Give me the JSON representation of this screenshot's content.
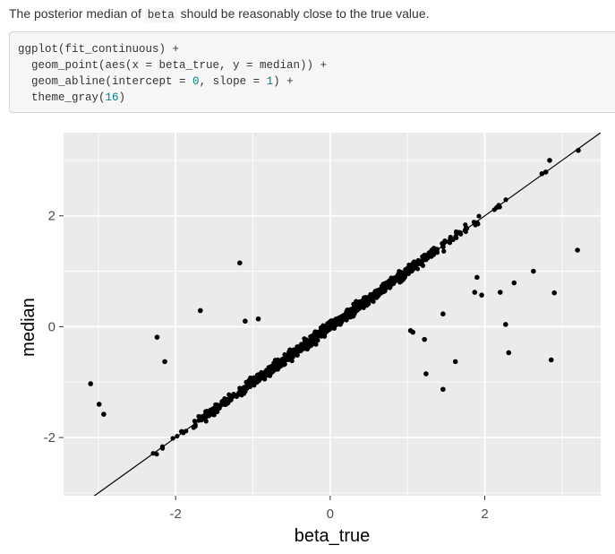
{
  "intro": {
    "before": "The posterior median of ",
    "code": "beta",
    "after": " should be reasonably close to the true value."
  },
  "code_lines": [
    {
      "parts": [
        {
          "t": "ggplot(fit_continuous) +"
        }
      ]
    },
    {
      "parts": [
        {
          "t": "  geom_point(aes(x = beta_true, y = median)) +"
        }
      ]
    },
    {
      "parts": [
        {
          "t": "  geom_abline(intercept = "
        },
        {
          "t": "0",
          "num": true
        },
        {
          "t": ", slope = "
        },
        {
          "t": "1",
          "num": true
        },
        {
          "t": ") +"
        }
      ]
    },
    {
      "parts": [
        {
          "t": "  theme_gray("
        },
        {
          "t": "16",
          "num": true
        },
        {
          "t": ")"
        }
      ]
    }
  ],
  "chart_data": {
    "type": "scatter",
    "xlabel": "beta_true",
    "ylabel": "median",
    "xlim": [
      -3.45,
      3.5
    ],
    "ylim": [
      -3.05,
      3.5
    ],
    "xticks": [
      -2,
      0,
      2
    ],
    "yticks": [
      -2,
      0,
      2
    ],
    "xtick_labels": [
      "-2",
      "0",
      "2"
    ],
    "ytick_labels": [
      "-2",
      "0",
      "2"
    ],
    "grid": true,
    "panel_color": "#ebebeb",
    "grid_color": "#ffffff",
    "point_color": "#000000",
    "line_color": "#000000",
    "abline": {
      "intercept": 0,
      "slope": 1
    },
    "outliers": [
      [
        -3.1,
        -1.03
      ],
      [
        -2.99,
        -1.4
      ],
      [
        -2.93,
        -1.58
      ],
      [
        -2.24,
        -0.19
      ],
      [
        -2.14,
        -0.63
      ],
      [
        -1.68,
        0.29
      ],
      [
        -1.17,
        1.15
      ],
      [
        -1.1,
        0.1
      ],
      [
        -0.93,
        0.14
      ],
      [
        1.04,
        -0.07
      ],
      [
        1.07,
        -0.1
      ],
      [
        1.22,
        -0.23
      ],
      [
        1.24,
        -0.85
      ],
      [
        1.46,
        -1.13
      ],
      [
        1.46,
        0.23
      ],
      [
        1.62,
        -0.63
      ],
      [
        1.87,
        0.62
      ],
      [
        1.9,
        0.89
      ],
      [
        1.96,
        0.57
      ],
      [
        2.2,
        0.62
      ],
      [
        2.27,
        0.04
      ],
      [
        2.31,
        -0.47
      ],
      [
        2.38,
        0.79
      ],
      [
        2.63,
        1.0
      ],
      [
        2.74,
        2.76
      ],
      [
        2.79,
        2.79
      ],
      [
        2.84,
        3.0
      ],
      [
        2.86,
        -0.6
      ],
      [
        2.9,
        0.61
      ],
      [
        3.2,
        1.38
      ],
      [
        3.21,
        3.18
      ]
    ],
    "near_line_band": {
      "x_min": -2.8,
      "x_max": 2.35,
      "count": 1000,
      "noise_sd": 0.045,
      "seed": 7
    }
  }
}
